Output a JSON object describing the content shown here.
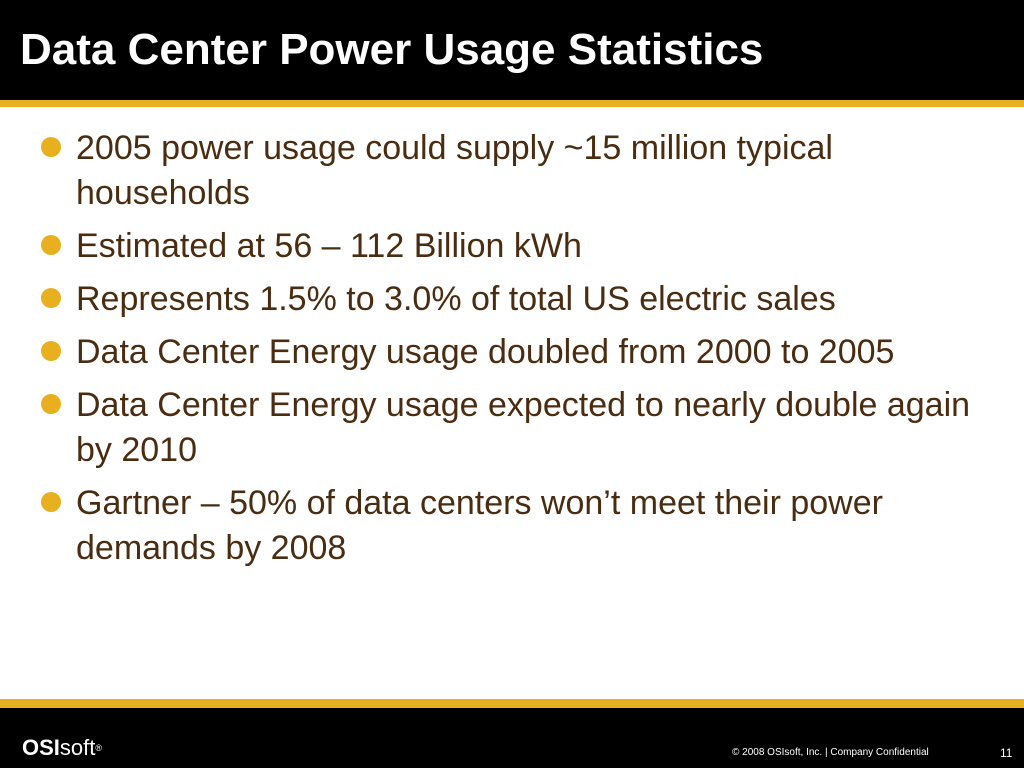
{
  "slide": {
    "title": "Data Center Power Usage Statistics",
    "bullets": [
      "2005 power usage could supply ~15 million typical households",
      "Estimated at 56 – 112 Billion kWh",
      "Represents 1.5% to 3.0% of total US electric sales",
      "Data Center Energy usage doubled from 2000 to 2005",
      "Data Center Energy usage expected to nearly double again by 2010",
      "Gartner – 50% of data centers won’t meet their power demands by 2008"
    ]
  },
  "footer": {
    "logo_bold": "OSI",
    "logo_light": "soft",
    "logo_mark": "®",
    "copyright": "© 2008 OSIsoft, Inc.  |  Company Confidential",
    "page_number": "11"
  },
  "colors": {
    "accent": "#e8b01e",
    "header_background": "#000000",
    "body_text": "#4a2c10"
  },
  "icons": {
    "bullet": "filled-circle"
  }
}
